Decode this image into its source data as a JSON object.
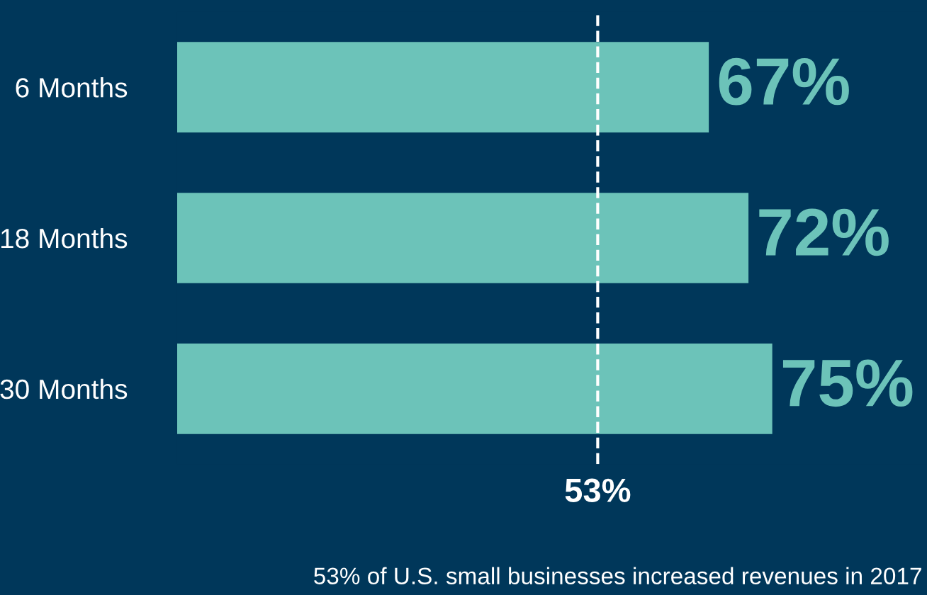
{
  "chart_data": {
    "type": "bar",
    "orientation": "horizontal",
    "categories": [
      "6 Months",
      "18 Months",
      "30 Months"
    ],
    "values": [
      67,
      72,
      75
    ],
    "color": "#6cc3b9",
    "value_labels": [
      "67%",
      "72%",
      "75%"
    ],
    "tick_labels": "y",
    "grid": false,
    "ref_lines": [
      {
        "axis": "x",
        "value": 53,
        "label": "53%",
        "color": "#ffffff",
        "line_style": "dashed"
      }
    ],
    "annotations": [
      "53% of U.S. small businesses increased revenues in 2017"
    ]
  }
}
